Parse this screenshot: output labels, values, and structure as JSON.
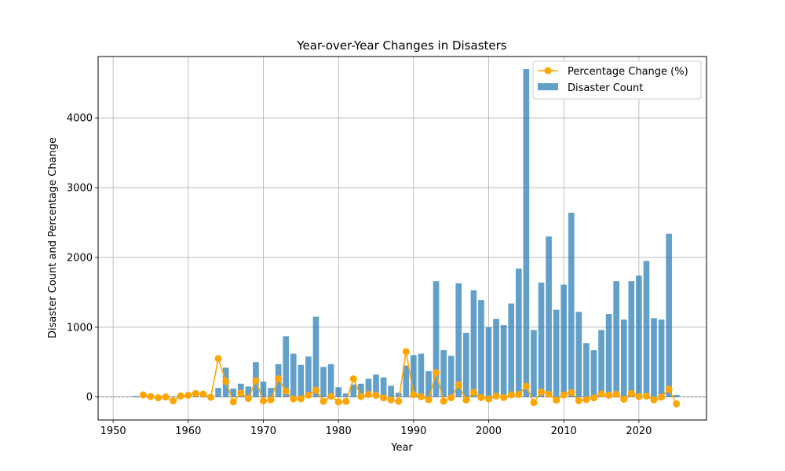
{
  "chart_data": {
    "type": "bar",
    "title": "Year-over-Year Changes in Disasters",
    "xlabel": "Year",
    "ylabel": "Disaster Count and Percentage Change",
    "xlim": [
      1948,
      2029
    ],
    "ylim": [
      -330,
      4880
    ],
    "x_ticks": [
      1950,
      1960,
      1970,
      1980,
      1990,
      2000,
      2010,
      2020
    ],
    "y_ticks": [
      0,
      1000,
      2000,
      3000,
      4000
    ],
    "grid": true,
    "legend_position": "top-right",
    "colors": {
      "bars": "#1f77b4",
      "line": "#ffa500",
      "zero_line": "#808080"
    },
    "legend": [
      {
        "label": "Percentage Change (%)",
        "kind": "line"
      },
      {
        "label": "Disaster Count",
        "kind": "bar"
      }
    ],
    "series": [
      {
        "name": "Disaster Count",
        "kind": "bar",
        "x": [
          1953,
          1954,
          1955,
          1956,
          1957,
          1958,
          1959,
          1960,
          1961,
          1962,
          1963,
          1964,
          1965,
          1966,
          1967,
          1968,
          1969,
          1970,
          1971,
          1972,
          1973,
          1974,
          1975,
          1976,
          1977,
          1978,
          1979,
          1980,
          1981,
          1982,
          1983,
          1984,
          1985,
          1986,
          1987,
          1988,
          1989,
          1990,
          1991,
          1992,
          1993,
          1994,
          1995,
          1996,
          1997,
          1998,
          1999,
          2000,
          2001,
          2002,
          2003,
          2004,
          2005,
          2006,
          2007,
          2008,
          2009,
          2010,
          2011,
          2012,
          2013,
          2014,
          2015,
          2016,
          2017,
          2018,
          2019,
          2020,
          2021,
          2022,
          2023,
          2024,
          2025
        ],
        "values": [
          13,
          17,
          18,
          16,
          16,
          7,
          8,
          10,
          15,
          21,
          20,
          130,
          420,
          120,
          190,
          150,
          500,
          220,
          130,
          470,
          870,
          620,
          460,
          580,
          1150,
          430,
          470,
          140,
          50,
          180,
          190,
          260,
          320,
          280,
          160,
          60,
          450,
          600,
          620,
          370,
          1660,
          670,
          590,
          1630,
          920,
          1530,
          1390,
          1000,
          1120,
          1030,
          1340,
          1840,
          4700,
          960,
          1640,
          2300,
          1250,
          1610,
          2640,
          1220,
          770,
          670,
          960,
          1190,
          1660,
          1110,
          1660,
          1740,
          1950,
          1130,
          1110,
          2340,
          30
        ]
      },
      {
        "name": "Percentage Change (%)",
        "kind": "line",
        "x": [
          1954,
          1955,
          1956,
          1957,
          1958,
          1959,
          1960,
          1961,
          1962,
          1963,
          1964,
          1965,
          1966,
          1967,
          1968,
          1969,
          1970,
          1971,
          1972,
          1973,
          1974,
          1975,
          1976,
          1977,
          1978,
          1979,
          1980,
          1981,
          1982,
          1983,
          1984,
          1985,
          1986,
          1987,
          1988,
          1989,
          1990,
          1991,
          1992,
          1993,
          1994,
          1995,
          1996,
          1997,
          1998,
          1999,
          2000,
          2001,
          2002,
          2003,
          2004,
          2005,
          2006,
          2007,
          2008,
          2009,
          2010,
          2011,
          2012,
          2013,
          2014,
          2015,
          2016,
          2017,
          2018,
          2019,
          2020,
          2021,
          2022,
          2023,
          2024,
          2025
        ],
        "values": [
          30,
          6,
          -11,
          0,
          -56,
          14,
          25,
          50,
          40,
          -5,
          550,
          223,
          -71,
          58,
          -21,
          233,
          -56,
          -41,
          262,
          85,
          -29,
          -26,
          26,
          98,
          -63,
          9,
          -70,
          -64,
          260,
          6,
          37,
          23,
          -13,
          -43,
          -62,
          650,
          33,
          3,
          -40,
          349,
          -60,
          -12,
          176,
          -44,
          66,
          -9,
          -28,
          12,
          -8,
          30,
          37,
          155,
          -80,
          71,
          40,
          -46,
          29,
          64,
          -54,
          -37,
          -13,
          43,
          24,
          39,
          -33,
          50,
          5,
          12,
          -42,
          -2,
          111,
          -99
        ]
      }
    ]
  }
}
